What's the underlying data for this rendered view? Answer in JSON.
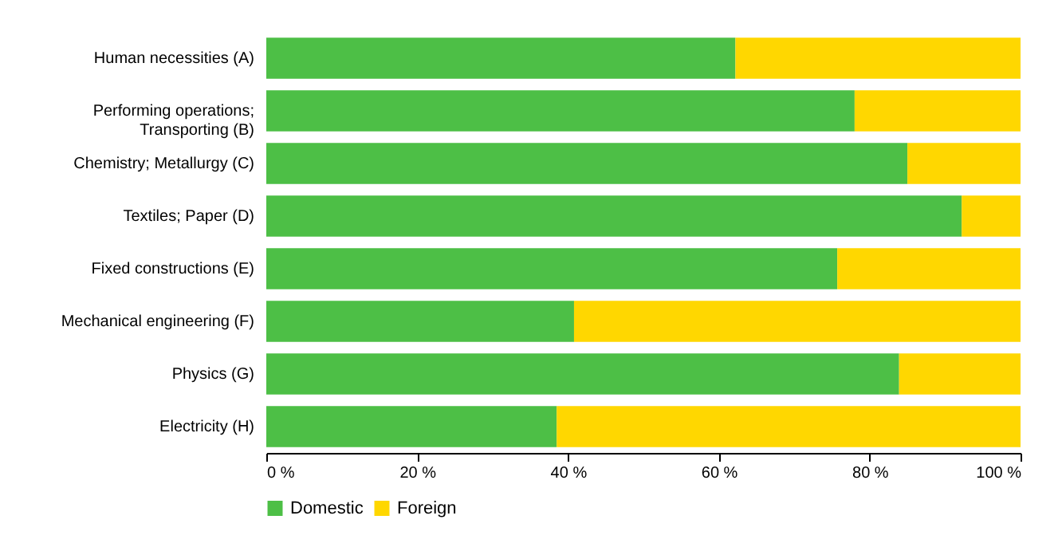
{
  "chart_data": {
    "type": "bar",
    "orientation": "horizontal",
    "stacked": true,
    "legend": "bottom",
    "grid": false,
    "categories": [
      "Human necessities (A)",
      "Performing operations; Transporting (B)",
      "Chemistry; Metallurgy  (C)",
      "Textiles; Paper (D)",
      "Fixed constructions (E)",
      "Mechanical engineering (F)",
      "Physics (G)",
      "Electricity (H)"
    ],
    "series": [
      {
        "name": "Domestic",
        "color": "#4dbf46",
        "values": [
          62.2,
          78,
          85,
          92.2,
          75.7,
          40.8,
          83.9,
          38.5
        ]
      },
      {
        "name": "Foreign",
        "color": "#ffd700",
        "values": [
          37.8,
          22,
          15,
          7.8,
          24.3,
          59.2,
          16.1,
          61.5
        ]
      }
    ],
    "xlim": [
      0,
      100
    ],
    "xticks": [
      {
        "value": 0,
        "label": "0 %"
      },
      {
        "value": 20,
        "label": "20 %"
      },
      {
        "value": 40,
        "label": "40 %"
      },
      {
        "value": 60,
        "label": "60 %"
      },
      {
        "value": 80,
        "label": "80 %"
      },
      {
        "value": 100,
        "label": "100 %"
      }
    ]
  }
}
